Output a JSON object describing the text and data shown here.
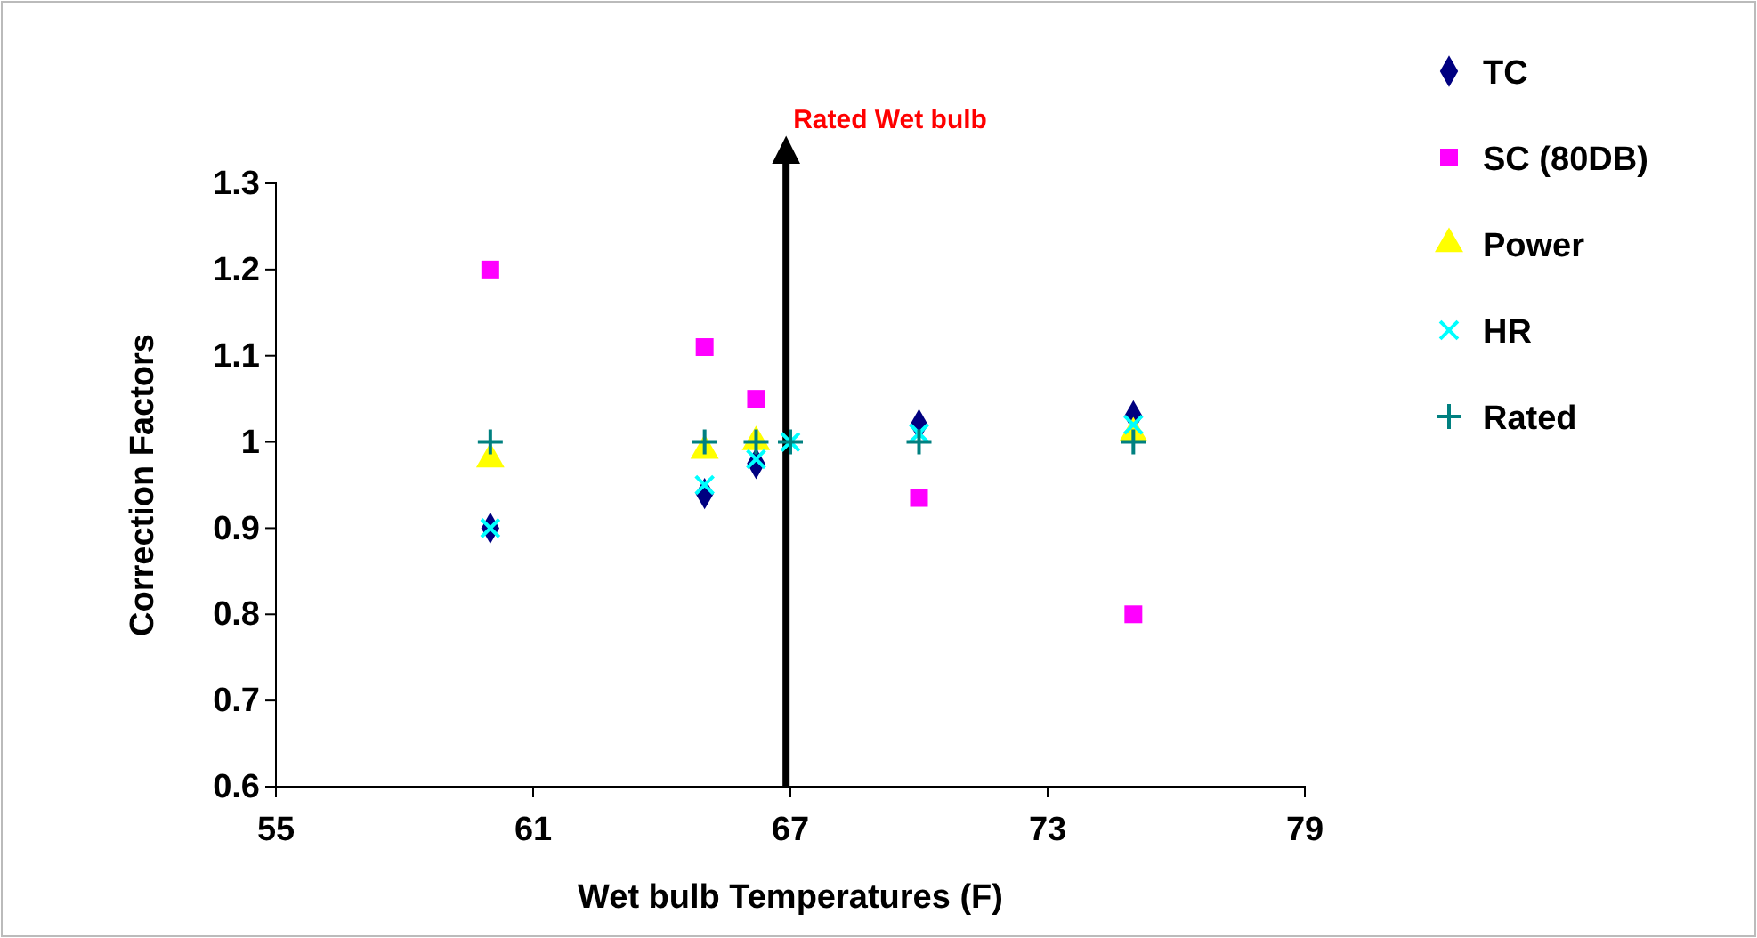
{
  "chart_data": {
    "type": "scatter",
    "xlabel": "Wet bulb Temperatures (F)",
    "ylabel": "Correction Factors",
    "x": [
      60,
      65,
      66.2,
      67,
      70,
      75
    ],
    "series": [
      {
        "name": "TC",
        "color": "#000080",
        "marker": "diamond",
        "values": [
          0.9,
          0.94,
          0.975,
          null,
          1.02,
          1.03
        ]
      },
      {
        "name": "SC (80DB)",
        "color": "#ff00ff",
        "marker": "square",
        "values": [
          1.2,
          1.11,
          1.05,
          null,
          0.935,
          0.8
        ]
      },
      {
        "name": "Power",
        "color": "#ffff00",
        "marker": "triangle",
        "values": [
          0.98,
          0.99,
          1.0,
          null,
          null,
          1.01
        ]
      },
      {
        "name": "HR",
        "color": "#00ffff",
        "marker": "x",
        "values": [
          0.9,
          0.95,
          0.98,
          1.0,
          1.01,
          1.02
        ]
      },
      {
        "name": "Rated",
        "color": "#008080",
        "marker": "cross",
        "values": [
          1.0,
          1.0,
          1.0,
          1.0,
          1.0,
          1.0
        ]
      }
    ],
    "xlim": [
      55,
      79
    ],
    "xticks": [
      55,
      61,
      67,
      73,
      79
    ],
    "ylim": [
      0.6,
      1.3
    ],
    "yticks": [
      {
        "value": 0.6,
        "label": "0.6"
      },
      {
        "value": 0.7,
        "label": "0.7"
      },
      {
        "value": 0.8,
        "label": "0.8"
      },
      {
        "value": 0.9,
        "label": "0.9"
      },
      {
        "value": 1,
        "label": "1"
      },
      {
        "value": 1.1,
        "label": "1.1"
      },
      {
        "value": 1.2,
        "label": "1.2"
      },
      {
        "value": 1.3,
        "label": "1.3"
      }
    ],
    "ref_lines": [
      {
        "axis": "x",
        "value": 66.9,
        "label": "Rated Wet bulb",
        "color": "#000000"
      }
    ],
    "grid": false,
    "legend": "right"
  }
}
